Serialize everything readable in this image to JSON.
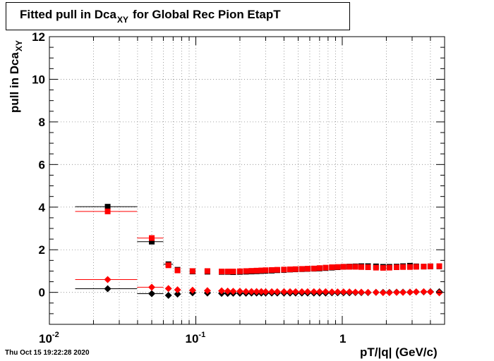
{
  "title": {
    "main": "Fitted pull in Dca",
    "sub": "XY",
    "tail": "for Global Rec Pion EtapT"
  },
  "footer": "Thu Oct 15 19:22:28 2020",
  "chart_data": {
    "type": "scatter",
    "title": "Fitted pull in Dca_XY for Global Rec Pion EtapT",
    "xlabel": "pT/|q| (GeV/c)",
    "ylabel": {
      "main": "pull in Dca",
      "sub": "XY"
    },
    "xscale": "log",
    "xlim": [
      0.01,
      5
    ],
    "ylim": [
      -1.5,
      12
    ],
    "yticks": [
      "0",
      "2",
      "4",
      "6",
      "8",
      "10",
      "12"
    ],
    "xticks": [
      {
        "base": "10",
        "exp": "-2"
      },
      {
        "base": "10",
        "exp": "-1"
      },
      {
        "base": "1",
        "exp": ""
      }
    ],
    "grid": true,
    "series": [
      {
        "color": "#000000",
        "marker": "square",
        "x": [
          0.025,
          0.05,
          0.065,
          0.075,
          0.095,
          0.12,
          0.15,
          0.165,
          0.18,
          0.2,
          0.22,
          0.24,
          0.26,
          0.28,
          0.3,
          0.33,
          0.36,
          0.4,
          0.44,
          0.48,
          0.53,
          0.58,
          0.64,
          0.7,
          0.77,
          0.85,
          0.93,
          1.02,
          1.12,
          1.23,
          1.35,
          1.5,
          1.7,
          1.9,
          2.1,
          2.35,
          2.6,
          2.9,
          3.2,
          3.6,
          4.0,
          4.6
        ],
        "y": [
          4.02,
          2.38,
          1.32,
          1.06,
          0.98,
          0.97,
          0.96,
          0.96,
          0.95,
          0.96,
          0.97,
          0.98,
          0.99,
          1.0,
          1.01,
          1.02,
          1.04,
          1.05,
          1.07,
          1.08,
          1.09,
          1.1,
          1.11,
          1.12,
          1.14,
          1.16,
          1.18,
          1.2,
          1.21,
          1.22,
          1.23,
          1.23,
          1.22,
          1.2,
          1.2,
          1.21,
          1.23,
          1.25,
          1.22,
          1.21,
          1.22,
          1.22
        ],
        "xerr": [
          [
            0.015,
            0.0397
          ],
          [
            0.0397,
            0.06
          ],
          [
            0.06,
            0.07
          ]
        ]
      },
      {
        "color": "#ff0000",
        "marker": "square",
        "x": [
          0.025,
          0.05,
          0.065,
          0.075,
          0.095,
          0.12,
          0.15,
          0.165,
          0.18,
          0.2,
          0.22,
          0.24,
          0.26,
          0.28,
          0.3,
          0.33,
          0.36,
          0.4,
          0.44,
          0.48,
          0.53,
          0.58,
          0.64,
          0.7,
          0.77,
          0.85,
          0.93,
          1.02,
          1.12,
          1.23,
          1.35,
          1.5,
          1.7,
          1.9,
          2.1,
          2.35,
          2.6,
          2.9,
          3.2,
          3.6,
          4.0,
          4.6
        ],
        "y": [
          3.8,
          2.55,
          1.27,
          1.03,
          1.0,
          1.0,
          0.98,
          0.98,
          0.98,
          0.99,
          1.0,
          1.01,
          1.02,
          1.03,
          1.04,
          1.05,
          1.06,
          1.07,
          1.08,
          1.09,
          1.1,
          1.11,
          1.12,
          1.14,
          1.16,
          1.18,
          1.19,
          1.2,
          1.2,
          1.2,
          1.19,
          1.18,
          1.16,
          1.15,
          1.16,
          1.18,
          1.19,
          1.19,
          1.2,
          1.21,
          1.22,
          1.23
        ],
        "xerr": [
          [
            0.015,
            0.0397
          ],
          [
            0.0397,
            0.06
          ]
        ]
      },
      {
        "color": "#000000",
        "marker": "diamond",
        "x": [
          0.025,
          0.05,
          0.065,
          0.075,
          0.095,
          0.12,
          0.15,
          0.165,
          0.18,
          0.2,
          0.22,
          0.24,
          0.26,
          0.28,
          0.3,
          0.33,
          0.36,
          0.4,
          0.44,
          0.48,
          0.53,
          0.58,
          0.64,
          0.7,
          0.77,
          0.85,
          0.93,
          1.02,
          1.12,
          1.23,
          1.35,
          1.5,
          1.7,
          1.9,
          2.1,
          2.35,
          2.6,
          2.9,
          3.2,
          3.6,
          4.0,
          4.6
        ],
        "y": [
          0.17,
          -0.06,
          -0.14,
          -0.08,
          -0.02,
          -0.03,
          -0.05,
          -0.05,
          -0.04,
          -0.04,
          -0.04,
          -0.03,
          -0.03,
          -0.03,
          -0.03,
          -0.03,
          -0.03,
          -0.03,
          -0.03,
          -0.03,
          -0.03,
          -0.03,
          -0.03,
          -0.03,
          -0.03,
          -0.02,
          -0.02,
          -0.02,
          -0.02,
          -0.01,
          -0.01,
          -0.01,
          0.0,
          0.0,
          0.0,
          0.01,
          0.01,
          0.01,
          0.02,
          0.02,
          0.03,
          0.03
        ],
        "xerr": [
          [
            0.015,
            0.0397
          ],
          [
            0.0397,
            0.06
          ]
        ]
      },
      {
        "color": "#ff0000",
        "marker": "diamond",
        "x": [
          0.025,
          0.05,
          0.065,
          0.075,
          0.095,
          0.12,
          0.15,
          0.165,
          0.18,
          0.2,
          0.22,
          0.24,
          0.26,
          0.28,
          0.3,
          0.33,
          0.36,
          0.4,
          0.44,
          0.48,
          0.53,
          0.58,
          0.64,
          0.7,
          0.77,
          0.85,
          0.93,
          1.02,
          1.12,
          1.23,
          1.35,
          1.5,
          1.7,
          1.9,
          2.1,
          2.35,
          2.6,
          2.9,
          3.2,
          3.6,
          4.0,
          4.6
        ],
        "y": [
          0.6,
          0.24,
          0.18,
          0.12,
          0.1,
          0.08,
          0.07,
          0.06,
          0.05,
          0.05,
          0.04,
          0.04,
          0.04,
          0.04,
          0.03,
          0.03,
          0.03,
          0.03,
          0.03,
          0.03,
          0.03,
          0.03,
          0.03,
          0.03,
          0.03,
          0.02,
          0.02,
          0.02,
          0.02,
          0.01,
          0.01,
          0.0,
          0.0,
          -0.01,
          -0.01,
          0.0,
          0.0,
          0.01,
          0.02,
          0.03,
          0.02,
          -0.02
        ],
        "xerr": [
          [
            0.015,
            0.0397
          ],
          [
            0.0397,
            0.06
          ]
        ]
      }
    ]
  }
}
